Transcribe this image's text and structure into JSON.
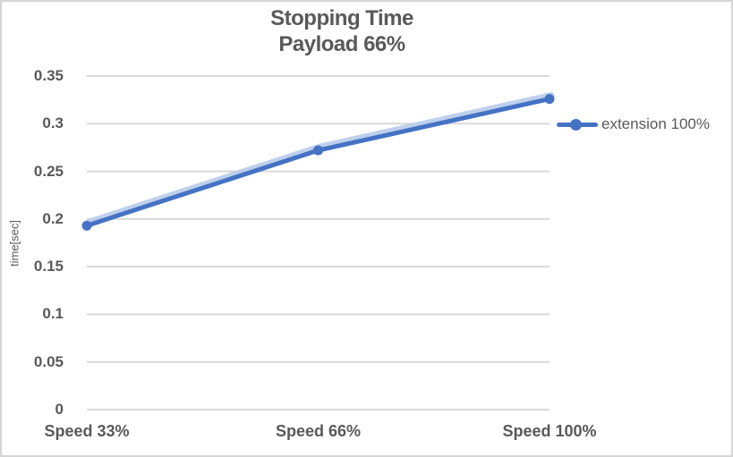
{
  "title": {
    "line1": "Stopping Time",
    "line2": "Payload 66%"
  },
  "y_axis_label": "time[sec]",
  "legend": {
    "label": "extension 100%"
  },
  "colors": {
    "line": "#4472C4",
    "line_halo": "#B7CBEA",
    "gridline": "#D9D9D9",
    "axis_line": "#D9D9D9",
    "text": "#595959",
    "chart_border": "#D5D5D5"
  },
  "chart_data": {
    "type": "line",
    "title": "Stopping Time Payload 66%",
    "categories": [
      "Speed 33%",
      "Speed 66%",
      "Speed 100%"
    ],
    "series": [
      {
        "name": "extension 100%",
        "values": [
          0.193,
          0.272,
          0.326
        ]
      }
    ],
    "xlabel": "",
    "ylabel": "time[sec]",
    "ylim": [
      0,
      0.35
    ],
    "yticks": [
      0,
      0.05,
      0.1,
      0.15,
      0.2,
      0.25,
      0.3,
      0.35
    ],
    "grid": true,
    "legend_position": "right",
    "marker": "circle"
  }
}
